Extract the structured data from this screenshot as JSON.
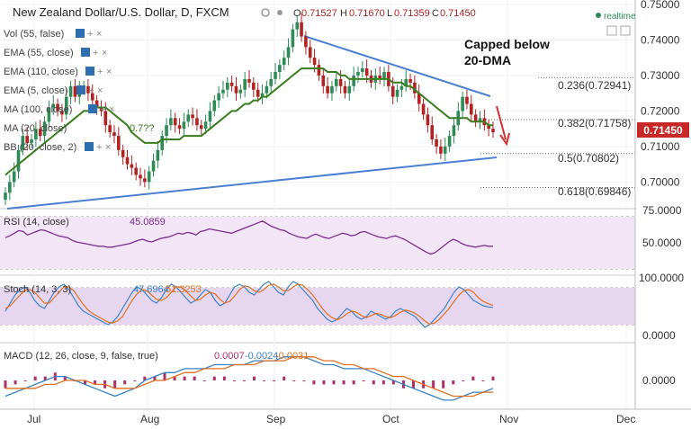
{
  "header": {
    "title": "New Zealand Dollar/U.S. Dollar, D, FXCM",
    "ohlc": {
      "o_label": "O",
      "o": "0.71527",
      "h_label": "H",
      "h": "0.71670",
      "l_label": "L",
      "l": "0.71359",
      "c_label": "C",
      "c": "0.71450"
    },
    "realtime": "realtime"
  },
  "indicators": [
    {
      "label": "Vol (55, false)"
    },
    {
      "label": "EMA (55, close)"
    },
    {
      "label": "EMA (110, close)"
    },
    {
      "label": "EMA (5, close)"
    },
    {
      "label": "MA (100, close)"
    },
    {
      "label": "MA (20, close)",
      "value": "0.7??"
    },
    {
      "label": "BB (20, close, 2)"
    }
  ],
  "annotation": {
    "line1": "Capped below",
    "line2": "20-DMA"
  },
  "fib_levels": [
    {
      "label": "0.236(0.72941)",
      "value": 0.72941
    },
    {
      "label": "0.382(0.71758)",
      "value": 0.71758
    },
    {
      "label": "0.5(0.70802)",
      "value": 0.70802
    },
    {
      "label": "0.618(0.69846)",
      "value": 0.69846
    }
  ],
  "last_price": "0.71450",
  "price_ticks": [
    "0.75000",
    "0.74000",
    "0.73000",
    "0.72000",
    "0.71000",
    "0.70000"
  ],
  "rsi": {
    "label": "RSI (14, close)",
    "value": "45.0859",
    "ticks": [
      "75.0000",
      "50.0000"
    ]
  },
  "stoch": {
    "label": "Stoch (14, 3, 3)",
    "k": "47.6964",
    "d": "51.3253",
    "ticks": [
      "100.0000",
      "0.0000"
    ]
  },
  "macd": {
    "label": "MACD (12, 26, close, 9, false, true)",
    "v1": "0.0007",
    "v2": "-0.0024",
    "v3": "-0.0031",
    "ticks": [
      "0.0000"
    ]
  },
  "time_axis": [
    "Jul",
    "Aug",
    "Sep",
    "Oct",
    "Nov",
    "Dec"
  ],
  "colors": {
    "up": "#2e8b57",
    "down": "#b22222",
    "ma20": "#3a7d1e",
    "trendline": "#4a7fd4",
    "rsi": "#7b2d8b",
    "stoch_k": "#3b82c4",
    "stoch_d": "#e07020",
    "macd": "#3b82c4",
    "signal": "#e07020",
    "hist": "#b0306a",
    "price_badge": "#c62828",
    "arrow": "#d32f2f"
  },
  "chart_data": [
    {
      "type": "candlestick",
      "title": "New Zealand Dollar/U.S. Dollar, D, FXCM",
      "ylim": [
        0.693,
        0.75
      ],
      "closes": [
        0.697,
        0.7,
        0.703,
        0.709,
        0.713,
        0.711,
        0.712,
        0.715,
        0.713,
        0.717,
        0.721,
        0.722,
        0.72,
        0.719,
        0.724,
        0.727,
        0.724,
        0.726,
        0.727,
        0.725,
        0.723,
        0.721,
        0.72,
        0.716,
        0.714,
        0.713,
        0.709,
        0.707,
        0.705,
        0.704,
        0.702,
        0.701,
        0.7,
        0.703,
        0.706,
        0.709,
        0.713,
        0.716,
        0.718,
        0.716,
        0.715,
        0.717,
        0.719,
        0.718,
        0.716,
        0.715,
        0.717,
        0.72,
        0.723,
        0.725,
        0.726,
        0.728,
        0.727,
        0.725,
        0.726,
        0.729,
        0.728,
        0.726,
        0.724,
        0.725,
        0.727,
        0.729,
        0.731,
        0.733,
        0.735,
        0.738,
        0.743,
        0.745,
        0.741,
        0.738,
        0.735,
        0.733,
        0.73,
        0.727,
        0.725,
        0.727,
        0.729,
        0.727,
        0.725,
        0.727,
        0.73,
        0.731,
        0.732,
        0.73,
        0.728,
        0.73,
        0.729,
        0.731,
        0.727,
        0.724,
        0.726,
        0.727,
        0.729,
        0.728,
        0.725,
        0.722,
        0.719,
        0.716,
        0.712,
        0.71,
        0.708,
        0.71,
        0.713,
        0.716,
        0.72,
        0.724,
        0.722,
        0.719,
        0.717,
        0.718,
        0.716,
        0.715,
        0.714
      ]
    },
    {
      "type": "line",
      "name": "MA (20, close)",
      "values": [
        0.702,
        0.703,
        0.704,
        0.705,
        0.706,
        0.707,
        0.708,
        0.709,
        0.71,
        0.711,
        0.712,
        0.713,
        0.714,
        0.715,
        0.716,
        0.717,
        0.718,
        0.719,
        0.72,
        0.72,
        0.721,
        0.721,
        0.721,
        0.721,
        0.72,
        0.719,
        0.718,
        0.717,
        0.716,
        0.714,
        0.713,
        0.712,
        0.711,
        0.711,
        0.711,
        0.711,
        0.712,
        0.712,
        0.712,
        0.712,
        0.712,
        0.713,
        0.713,
        0.713,
        0.713,
        0.713,
        0.714,
        0.715,
        0.716,
        0.717,
        0.718,
        0.719,
        0.72,
        0.72,
        0.721,
        0.722,
        0.722,
        0.723,
        0.723,
        0.724,
        0.724,
        0.725,
        0.726,
        0.727,
        0.728,
        0.729,
        0.73,
        0.731,
        0.732,
        0.732,
        0.732,
        0.732,
        0.732,
        0.732,
        0.731,
        0.731,
        0.731,
        0.73,
        0.73,
        0.729,
        0.729,
        0.729,
        0.729,
        0.729,
        0.729,
        0.729,
        0.729,
        0.729,
        0.729,
        0.728,
        0.728,
        0.728,
        0.727,
        0.727,
        0.726,
        0.725,
        0.724,
        0.723,
        0.722,
        0.721,
        0.72,
        0.719,
        0.718,
        0.718,
        0.718,
        0.718,
        0.718,
        0.717,
        0.717,
        0.717,
        0.717,
        0.716,
        0.716
      ]
    },
    {
      "type": "line",
      "name": "RSI (14, close)",
      "ylim": [
        20,
        80
      ],
      "values": [
        55,
        57,
        60,
        63,
        62,
        58,
        60,
        62,
        64,
        63,
        61,
        59,
        57,
        56,
        55,
        52,
        50,
        49,
        48,
        47,
        46,
        45,
        45,
        44,
        44,
        45,
        46,
        47,
        48,
        50,
        52,
        53,
        51,
        50,
        52,
        54,
        55,
        56,
        58,
        60,
        59,
        61,
        60,
        58,
        62,
        63,
        65,
        64,
        63,
        62,
        61,
        60,
        62,
        64,
        66,
        68,
        70,
        72,
        74,
        71,
        68,
        66,
        64,
        63,
        60,
        58,
        56,
        55,
        54,
        57,
        59,
        57,
        55,
        54,
        56,
        58,
        60,
        59,
        57,
        58,
        61,
        62,
        60,
        58,
        56,
        55,
        54,
        56,
        57,
        55,
        53,
        50,
        47,
        44,
        41,
        38,
        36,
        38,
        42,
        46,
        50,
        53,
        51,
        48,
        46,
        45,
        44,
        45,
        46,
        45,
        45
      ]
    },
    {
      "type": "line",
      "name": "Stoch (14, 3, 3)",
      "ylim": [
        0,
        100
      ],
      "k": [
        40,
        55,
        70,
        80,
        85,
        75,
        60,
        50,
        45,
        60,
        75,
        85,
        90,
        80,
        65,
        50,
        40,
        35,
        30,
        25,
        20,
        15,
        20,
        30,
        45,
        60,
        75,
        85,
        80,
        70,
        60,
        55,
        65,
        80,
        90,
        85,
        75,
        65,
        55,
        60,
        70,
        80,
        75,
        60,
        50,
        55,
        70,
        85,
        90,
        85,
        75,
        70,
        80,
        90,
        95,
        85,
        75,
        70,
        85,
        95,
        90,
        80,
        70,
        60,
        45,
        35,
        25,
        20,
        25,
        35,
        45,
        40,
        30,
        25,
        30,
        40,
        35,
        30,
        25,
        30,
        40,
        45,
        40,
        35,
        30,
        20,
        10,
        15,
        25,
        35,
        45,
        60,
        75,
        85,
        80,
        70,
        60,
        55,
        50,
        48,
        47
      ],
      "d": [
        45,
        50,
        60,
        70,
        78,
        80,
        75,
        65,
        55,
        55,
        65,
        75,
        85,
        85,
        78,
        65,
        52,
        42,
        35,
        30,
        25,
        20,
        18,
        22,
        30,
        45,
        60,
        72,
        80,
        78,
        70,
        62,
        60,
        65,
        75,
        85,
        85,
        78,
        68,
        60,
        62,
        70,
        75,
        72,
        62,
        55,
        58,
        68,
        80,
        87,
        85,
        78,
        75,
        80,
        88,
        90,
        85,
        78,
        78,
        85,
        90,
        88,
        80,
        70,
        58,
        45,
        35,
        28,
        24,
        28,
        35,
        40,
        38,
        32,
        28,
        32,
        36,
        34,
        30,
        28,
        32,
        38,
        42,
        40,
        36,
        30,
        22,
        16,
        18,
        25,
        35,
        45,
        58,
        70,
        78,
        80,
        75,
        65,
        58,
        54,
        51
      ]
    },
    {
      "type": "line",
      "name": "MACD (12, 26, close, 9, false, true)",
      "macd": [
        -0.004,
        -0.003,
        -0.002,
        -0.001,
        0.0,
        0.001,
        0.001,
        0.0,
        -0.001,
        -0.002,
        -0.003,
        -0.004,
        -0.003,
        -0.002,
        0.0,
        0.001,
        0.002,
        0.002,
        0.003,
        0.003,
        0.003,
        0.004,
        0.004,
        0.004,
        0.004,
        0.005,
        0.005,
        0.005,
        0.006,
        0.006,
        0.006,
        0.005,
        0.004,
        0.004,
        0.003,
        0.003,
        0.003,
        0.002,
        0.001,
        0.0,
        -0.001,
        -0.002,
        -0.003,
        -0.004,
        -0.005,
        -0.005,
        -0.004,
        -0.003,
        -0.003,
        -0.002
      ],
      "signal": [
        -0.002,
        -0.002,
        -0.002,
        -0.002,
        -0.001,
        -0.001,
        0.0,
        0.0,
        0.0,
        -0.001,
        -0.001,
        -0.002,
        -0.002,
        -0.002,
        -0.001,
        0.0,
        0.0,
        0.001,
        0.002,
        0.002,
        0.003,
        0.003,
        0.003,
        0.004,
        0.004,
        0.004,
        0.005,
        0.005,
        0.005,
        0.006,
        0.006,
        0.006,
        0.005,
        0.005,
        0.004,
        0.004,
        0.003,
        0.003,
        0.002,
        0.001,
        0.001,
        0.0,
        -0.001,
        -0.002,
        -0.003,
        -0.004,
        -0.004,
        -0.004,
        -0.003,
        -0.003
      ],
      "histogram": [
        -0.002,
        -0.001,
        0.0,
        0.001,
        0.001,
        0.002,
        0.001,
        0.0,
        -0.001,
        -0.001,
        -0.002,
        -0.002,
        -0.001,
        0.0,
        0.001,
        0.001,
        0.002,
        0.001,
        0.001,
        0.001,
        0.0,
        0.001,
        0.001,
        0.0,
        0.0,
        0.001,
        0.0,
        0.0,
        0.001,
        0.0,
        0.0,
        -0.001,
        -0.001,
        -0.001,
        -0.001,
        -0.001,
        0.0,
        -0.001,
        -0.001,
        -0.001,
        -0.002,
        -0.002,
        -0.002,
        -0.002,
        -0.002,
        -0.001,
        0.0,
        0.001,
        0.0,
        0.001
      ]
    }
  ]
}
